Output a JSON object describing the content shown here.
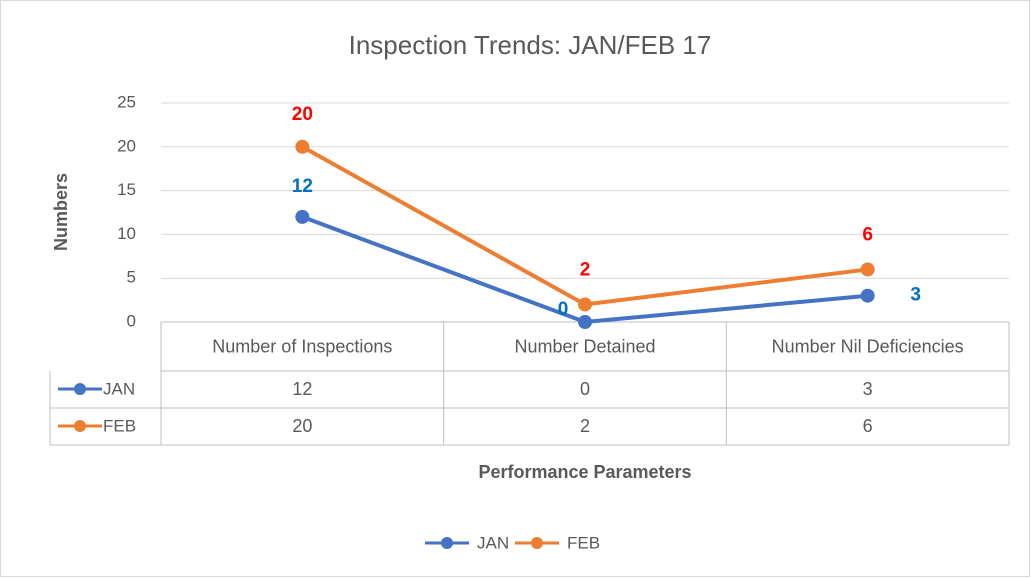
{
  "chart_data": {
    "type": "line",
    "title": "Inspection Trends: JAN/FEB 17",
    "y_axis_label": "Numbers",
    "x_axis_label": "Performance Parameters",
    "categories": [
      "Number of Inspections",
      "Number Detained",
      "Number Nil Deficiencies"
    ],
    "series": [
      {
        "name": "JAN",
        "color": "#4472c4",
        "label_color": "#0070c0",
        "values": [
          12,
          0,
          3
        ]
      },
      {
        "name": "FEB",
        "color": "#ed7d31",
        "label_color": "#ff0000",
        "values": [
          20,
          2,
          6
        ]
      }
    ],
    "ylim": [
      0,
      25
    ],
    "yticks": [
      0,
      5,
      10,
      15,
      20,
      25
    ],
    "grid": true,
    "legend": "bottom",
    "data_table": true
  }
}
